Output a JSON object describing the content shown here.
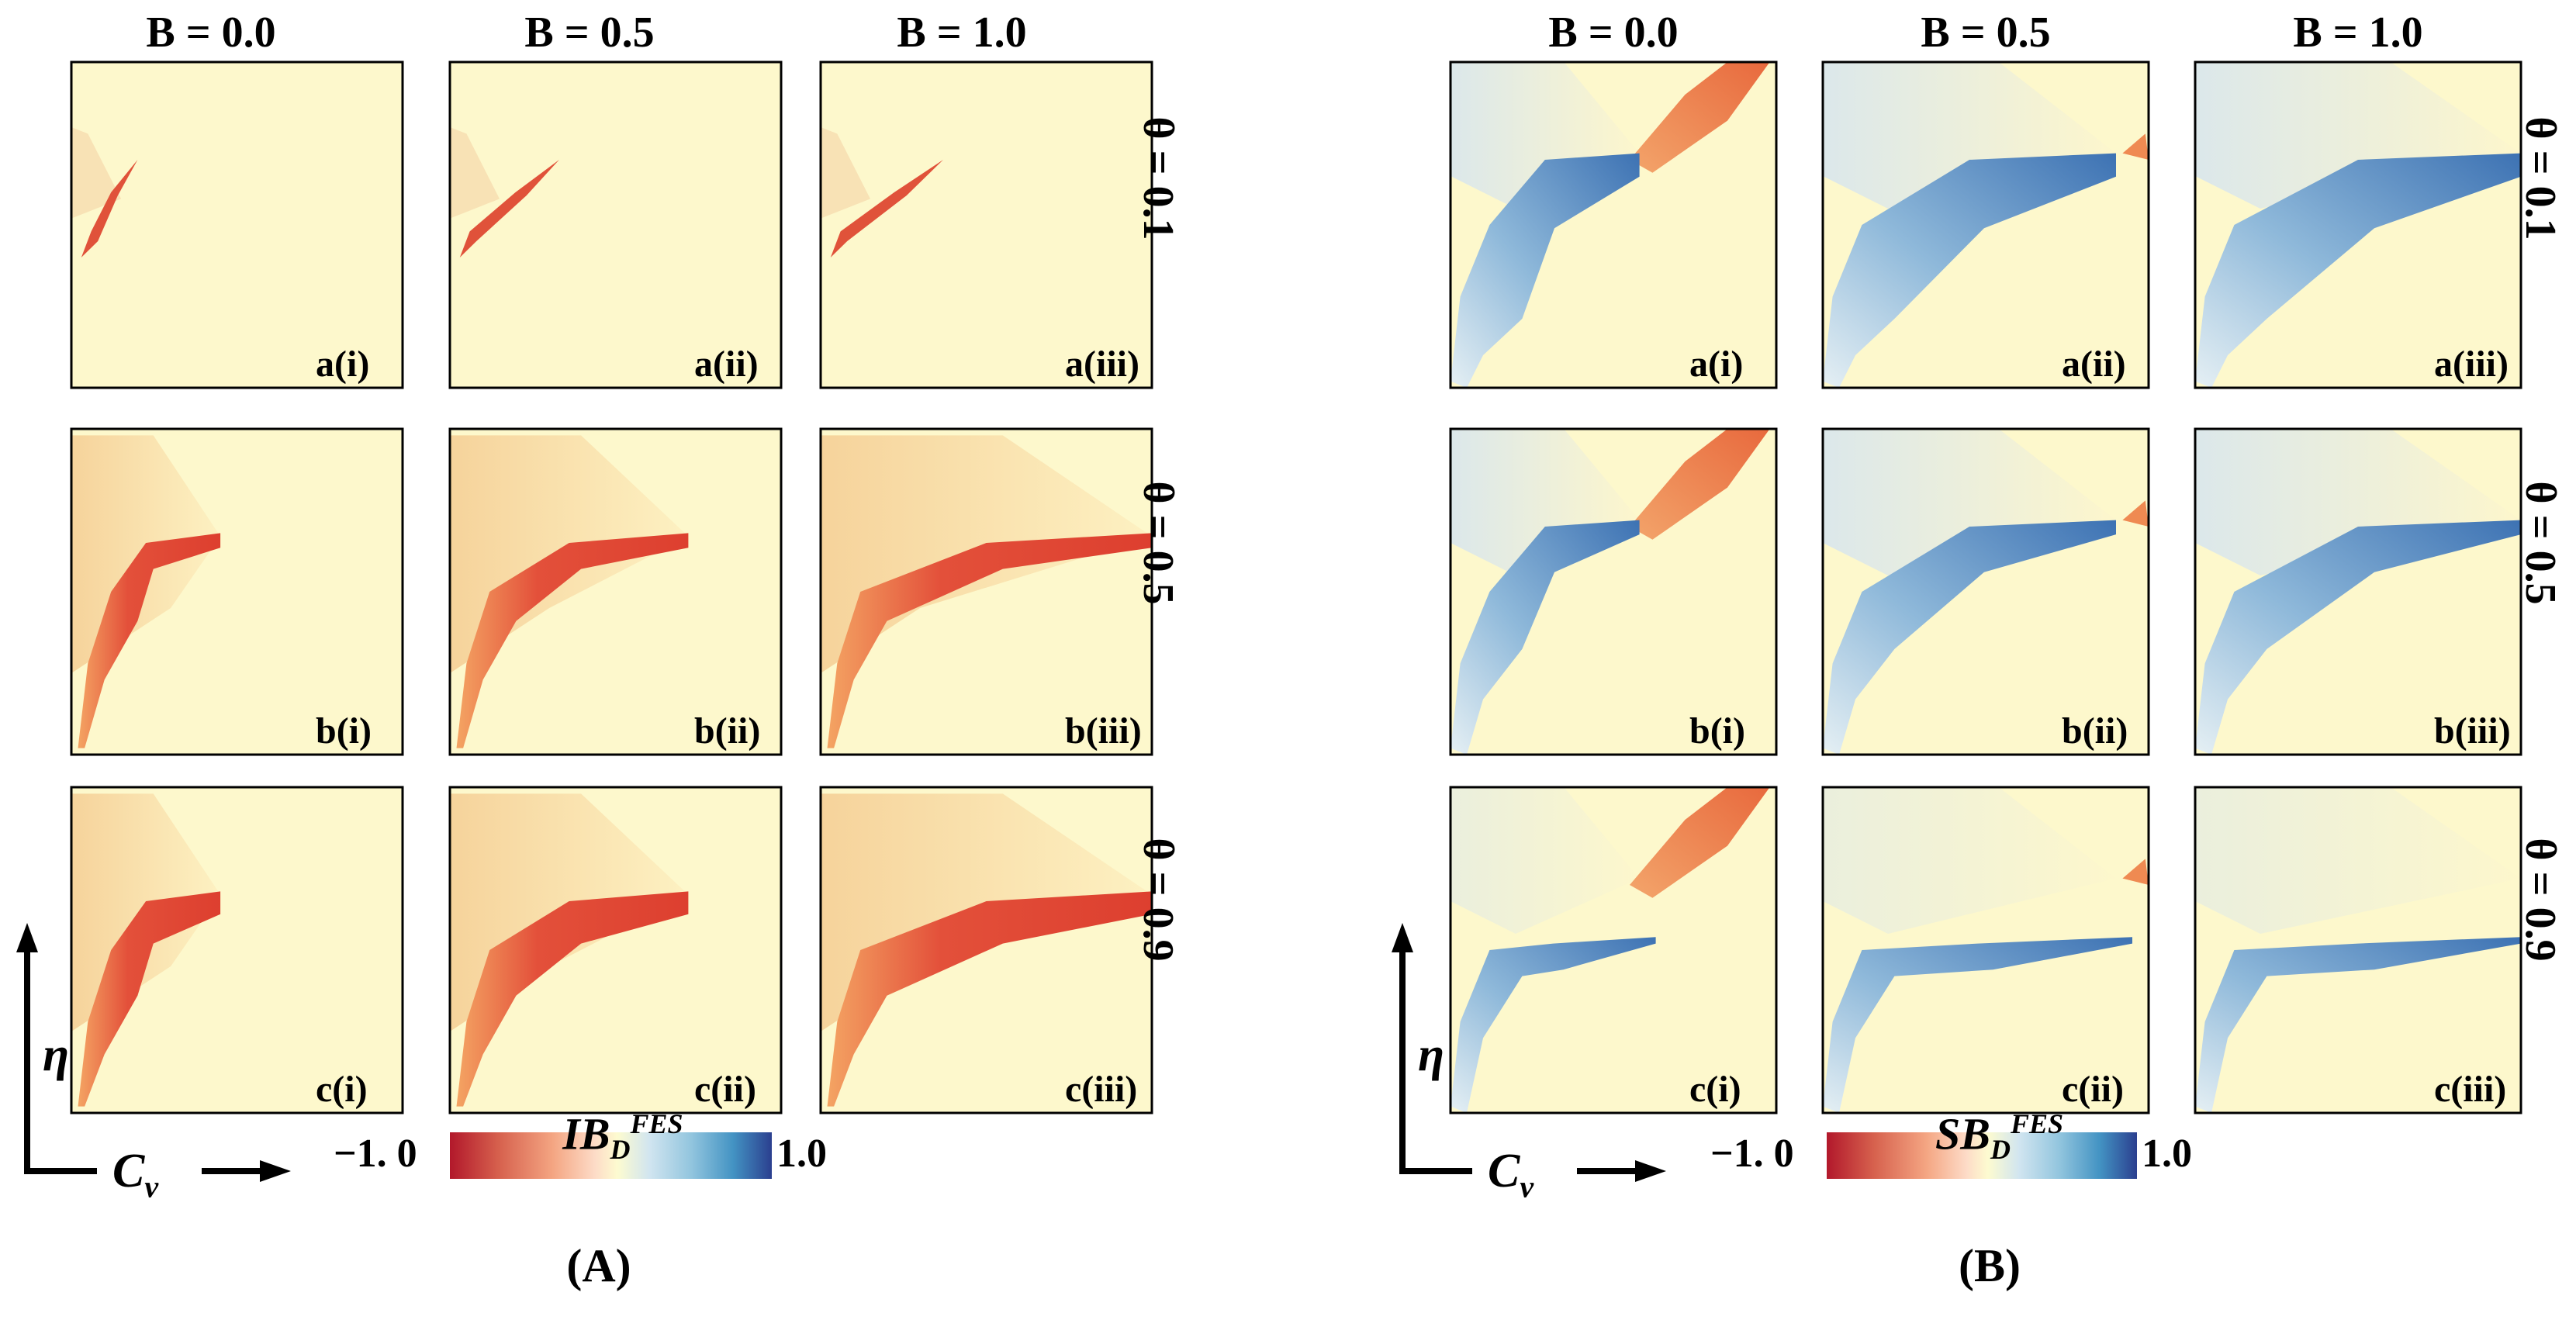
{
  "chart_data": {
    "type": "heatmap",
    "x_axis_label": "C",
    "x_axis_subscript": "v",
    "y_axis_label": "η",
    "column_labels": [
      "B  =  0.0",
      "B  =  0.5",
      "B  =  1.0"
    ],
    "row_labels": [
      "θ  =  0.1",
      "θ  =  0.5",
      "θ  =  0.9"
    ],
    "panel_ids": [
      [
        "a(i)",
        "a(ii)",
        "a(iii)"
      ],
      [
        "b(i)",
        "b(ii)",
        "b(iii)"
      ],
      [
        "c(i)",
        "c(ii)",
        "c(iii)"
      ]
    ],
    "figures": [
      {
        "caption": "(A)",
        "colorbar": {
          "min_label": "−1. 0",
          "max_label": "1.0",
          "range": [
            -1.0,
            1.0
          ],
          "title": "IB",
          "title_sub": "D",
          "title_sup": "FES",
          "colors": [
            "#b2182b",
            "#d6604d",
            "#f4a582",
            "#fddbc7",
            "#fdfbd0",
            "#d1e5f0",
            "#92c5de",
            "#4393c3",
            "#2b3f8f"
          ]
        }
      },
      {
        "caption": "(B)",
        "colorbar": {
          "min_label": "−1. 0",
          "max_label": "1.0",
          "range": [
            -1.0,
            1.0
          ],
          "title": "SB",
          "title_sub": "D",
          "title_sup": "FES",
          "colors": [
            "#b2182b",
            "#d6604d",
            "#f4a582",
            "#fddbc7",
            "#fdfbd0",
            "#d1e5f0",
            "#92c5de",
            "#4393c3",
            "#2b3f8f"
          ]
        }
      }
    ]
  }
}
